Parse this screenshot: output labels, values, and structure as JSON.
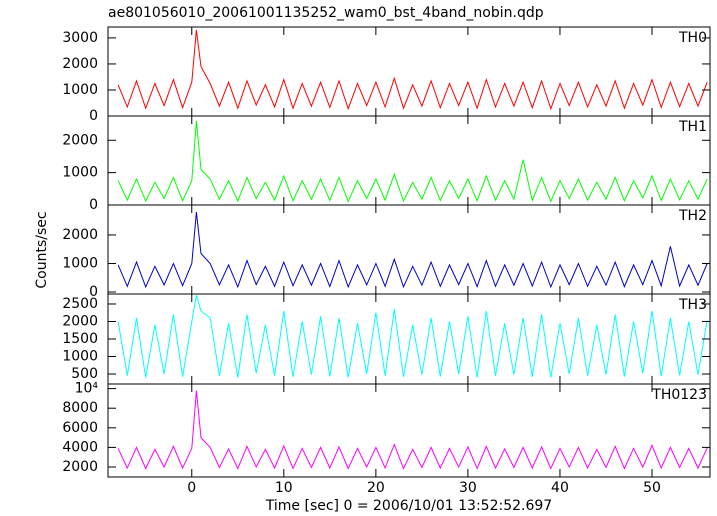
{
  "chart_data": [
    {
      "type": "line",
      "title": "ae801056010_20061001135252_wam0_bst_4band_nobin.qdp",
      "xlim": [
        -9.1,
        56.3
      ],
      "x": [
        -8,
        -7,
        -6,
        -5,
        -4,
        -3,
        -2,
        -1,
        0,
        0.5,
        1,
        2,
        3,
        4,
        5,
        6,
        7,
        8,
        9,
        10,
        11,
        12,
        13,
        14,
        15,
        16,
        17,
        18,
        19,
        20,
        21,
        22,
        23,
        24,
        25,
        26,
        27,
        28,
        29,
        30,
        31,
        32,
        33,
        34,
        35,
        36,
        37,
        38,
        39,
        40,
        41,
        42,
        43,
        44,
        45,
        46,
        47,
        48,
        49,
        50,
        51,
        52,
        53,
        54,
        55,
        56
      ],
      "ylim": [
        0,
        3420
      ],
      "yticks": [
        0,
        1000,
        2000,
        3000
      ],
      "series": [
        {
          "name": "TH0",
          "color": "#ff0000",
          "values": [
            1200,
            350,
            1350,
            300,
            1250,
            400,
            1400,
            320,
            1300,
            3300,
            1900,
            1250,
            380,
            1300,
            300,
            1350,
            420,
            1200,
            350,
            1400,
            300,
            1250,
            380,
            1300,
            330,
            1350,
            280,
            1250,
            400,
            1300,
            350,
            1450,
            300,
            1200,
            380,
            1350,
            320,
            1250,
            400,
            1300,
            300,
            1400,
            350,
            1250,
            380,
            1300,
            320,
            1350,
            280,
            1250,
            400,
            1300,
            350,
            1200,
            380,
            1350,
            300,
            1250,
            420,
            1400,
            330,
            1300,
            360,
            1250,
            380,
            1300
          ]
        }
      ]
    },
    {
      "type": "line",
      "xlim": [
        -9.1,
        56.3
      ],
      "x": [
        -8,
        -7,
        -6,
        -5,
        -4,
        -3,
        -2,
        -1,
        0,
        0.5,
        1,
        2,
        3,
        4,
        5,
        6,
        7,
        8,
        9,
        10,
        11,
        12,
        13,
        14,
        15,
        16,
        17,
        18,
        19,
        20,
        21,
        22,
        23,
        24,
        25,
        26,
        27,
        28,
        29,
        30,
        31,
        32,
        33,
        34,
        35,
        36,
        37,
        38,
        39,
        40,
        41,
        42,
        43,
        44,
        45,
        46,
        47,
        48,
        49,
        50,
        51,
        52,
        53,
        54,
        55,
        56
      ],
      "ylim": [
        0,
        2750
      ],
      "yticks": [
        0,
        1000,
        2000
      ],
      "series": [
        {
          "name": "TH1",
          "color": "#00ff00",
          "values": [
            750,
            150,
            800,
            120,
            700,
            200,
            850,
            130,
            750,
            2600,
            1100,
            800,
            180,
            750,
            120,
            850,
            200,
            700,
            150,
            900,
            130,
            750,
            180,
            800,
            140,
            850,
            110,
            750,
            200,
            800,
            150,
            950,
            120,
            700,
            180,
            850,
            140,
            750,
            200,
            800,
            130,
            900,
            150,
            750,
            180,
            1400,
            140,
            850,
            110,
            750,
            200,
            800,
            150,
            700,
            180,
            850,
            130,
            750,
            220,
            900,
            140,
            800,
            160,
            750,
            180,
            800
          ]
        }
      ]
    },
    {
      "type": "line",
      "ylabel": "Counts/sec",
      "xlim": [
        -9.1,
        56.3
      ],
      "x": [
        -8,
        -7,
        -6,
        -5,
        -4,
        -3,
        -2,
        -1,
        0,
        0.5,
        1,
        2,
        3,
        4,
        5,
        6,
        7,
        8,
        9,
        10,
        11,
        12,
        13,
        14,
        15,
        16,
        17,
        18,
        19,
        20,
        21,
        22,
        23,
        24,
        25,
        26,
        27,
        28,
        29,
        30,
        31,
        32,
        33,
        34,
        35,
        36,
        37,
        38,
        39,
        40,
        41,
        42,
        43,
        44,
        45,
        46,
        47,
        48,
        49,
        50,
        51,
        52,
        53,
        54,
        55,
        56
      ],
      "ylim": [
        -70,
        3050
      ],
      "yticks": [
        0,
        1000,
        2000
      ],
      "series": [
        {
          "name": "TH2",
          "color": "#0000cc",
          "values": [
            950,
            200,
            1050,
            180,
            900,
            250,
            1000,
            220,
            1000,
            2800,
            1350,
            1000,
            250,
            950,
            180,
            1100,
            260,
            900,
            200,
            1050,
            220,
            950,
            240,
            1000,
            190,
            1100,
            180,
            950,
            250,
            1000,
            200,
            1150,
            180,
            900,
            240,
            1050,
            200,
            950,
            260,
            1000,
            190,
            1100,
            200,
            950,
            240,
            1000,
            210,
            1050,
            180,
            950,
            260,
            1000,
            200,
            900,
            240,
            1050,
            190,
            950,
            260,
            1100,
            220,
            1600,
            210,
            950,
            240,
            1000
          ]
        }
      ]
    },
    {
      "type": "line",
      "xlim": [
        -9.1,
        56.3
      ],
      "x": [
        -8,
        -7,
        -6,
        -5,
        -4,
        -3,
        -2,
        -1,
        0,
        0.5,
        1,
        2,
        3,
        4,
        5,
        6,
        7,
        8,
        9,
        10,
        11,
        12,
        13,
        14,
        15,
        16,
        17,
        18,
        19,
        20,
        21,
        22,
        23,
        24,
        25,
        26,
        27,
        28,
        29,
        30,
        31,
        32,
        33,
        34,
        35,
        36,
        37,
        38,
        39,
        40,
        41,
        42,
        43,
        44,
        45,
        46,
        47,
        48,
        49,
        50,
        51,
        52,
        53,
        54,
        55,
        56
      ],
      "ylim": [
        215,
        2785
      ],
      "yticks": [
        500,
        1000,
        1500,
        2000,
        2500
      ],
      "series": [
        {
          "name": "TH3",
          "color": "#00ffff",
          "values": [
            2000,
            450,
            2100,
            400,
            1900,
            500,
            2200,
            420,
            2000,
            2750,
            2300,
            2100,
            450,
            1950,
            400,
            2200,
            520,
            1900,
            450,
            2300,
            420,
            2000,
            480,
            2150,
            430,
            2100,
            400,
            1950,
            500,
            2250,
            450,
            2350,
            420,
            1900,
            480,
            2100,
            430,
            2000,
            500,
            2150,
            400,
            2300,
            450,
            1950,
            480,
            2100,
            420,
            2200,
            400,
            1950,
            500,
            2100,
            450,
            1900,
            480,
            2200,
            430,
            2000,
            520,
            2300,
            440,
            2100,
            460,
            2000,
            480,
            2050
          ]
        }
      ]
    },
    {
      "type": "line",
      "xlabel": "Time [sec] 0 = 2006/10/01 13:52:52.697",
      "xlim": [
        -9.1,
        56.3
      ],
      "xticks": [
        0,
        10,
        20,
        30,
        40,
        50
      ],
      "x": [
        -8,
        -7,
        -6,
        -5,
        -4,
        -3,
        -2,
        -1,
        0,
        0.5,
        1,
        2,
        3,
        4,
        5,
        6,
        7,
        8,
        9,
        10,
        11,
        12,
        13,
        14,
        15,
        16,
        17,
        18,
        19,
        20,
        21,
        22,
        23,
        24,
        25,
        26,
        27,
        28,
        29,
        30,
        31,
        32,
        33,
        34,
        35,
        36,
        37,
        38,
        39,
        40,
        41,
        42,
        43,
        44,
        45,
        46,
        47,
        48,
        49,
        50,
        51,
        52,
        53,
        54,
        55,
        56
      ],
      "ylim": [
        980,
        10470
      ],
      "yticks": [
        2000,
        4000,
        6000,
        8000,
        {
          "value": 10000,
          "label": "10⁴"
        }
      ],
      "series": [
        {
          "name": "TH0123",
          "color": "#ff00ff",
          "values": [
            3900,
            1900,
            4000,
            1850,
            3800,
            2000,
            4100,
            1900,
            3900,
            9800,
            5000,
            4000,
            1950,
            3850,
            1850,
            4100,
            2000,
            3800,
            1900,
            4150,
            1850,
            3900,
            1950,
            4000,
            1900,
            4050,
            1850,
            3900,
            2000,
            4000,
            1900,
            4300,
            1850,
            3800,
            1950,
            4000,
            1900,
            3900,
            2000,
            4050,
            1850,
            4100,
            1900,
            3850,
            1950,
            4000,
            1900,
            4050,
            1850,
            3900,
            2000,
            4000,
            1900,
            3800,
            1950,
            4100,
            1850,
            3900,
            2000,
            4200,
            1900,
            4000,
            1950,
            3900,
            1900,
            3950
          ]
        }
      ]
    }
  ]
}
